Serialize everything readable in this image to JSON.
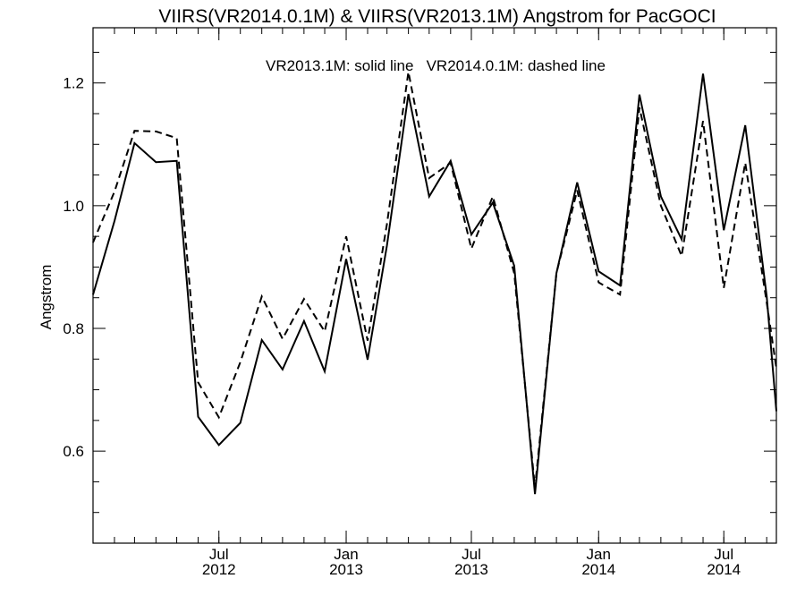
{
  "chart_data": {
    "type": "line",
    "title": "VIIRS(VR2014.0.1M) & VIIRS(VR2013.1M)  Angstrom for PacGOCI",
    "legend_text": "VR2013.1M: solid line   VR2014.0.1M: dashed line",
    "xlabel": "",
    "ylabel": "Angstrom",
    "ylim": [
      0.45,
      1.29
    ],
    "y_ticks": [
      0.6,
      0.8,
      1.0,
      1.2
    ],
    "y_tick_labels": [
      "0.6",
      "0.8",
      "1.0",
      "1.2"
    ],
    "x_range": [
      "2012-01-01",
      "2014-09-15"
    ],
    "x_ticks": [
      {
        "date": "2012-07-01",
        "month": "Jul",
        "year": "2012"
      },
      {
        "date": "2013-01-01",
        "month": "Jan",
        "year": "2013"
      },
      {
        "date": "2013-07-01",
        "month": "Jul",
        "year": "2013"
      },
      {
        "date": "2014-01-01",
        "month": "Jan",
        "year": "2014"
      },
      {
        "date": "2014-07-01",
        "month": "Jul",
        "year": "2014"
      }
    ],
    "x": [
      "2012-01-01",
      "2012-02-01",
      "2012-03-01",
      "2012-04-01",
      "2012-05-01",
      "2012-06-01",
      "2012-07-01",
      "2012-08-01",
      "2012-09-01",
      "2012-10-01",
      "2012-11-01",
      "2012-12-01",
      "2013-01-01",
      "2013-02-01",
      "2013-03-01",
      "2013-04-01",
      "2013-05-01",
      "2013-06-01",
      "2013-07-01",
      "2013-08-01",
      "2013-09-01",
      "2013-10-01",
      "2013-11-01",
      "2013-12-01",
      "2014-01-01",
      "2014-02-01",
      "2014-03-01",
      "2014-04-01",
      "2014-05-01",
      "2014-06-01",
      "2014-07-01",
      "2014-08-01",
      "2014-09-01",
      "2014-09-15"
    ],
    "series": [
      {
        "name": "VR2013.1M",
        "style": "solid",
        "values": [
          0.855,
          0.975,
          1.102,
          1.071,
          1.073,
          0.656,
          0.61,
          0.646,
          0.781,
          0.733,
          0.812,
          0.73,
          0.913,
          0.749,
          0.935,
          1.182,
          1.015,
          1.073,
          0.953,
          1.005,
          0.902,
          0.53,
          0.89,
          1.038,
          0.893,
          0.87,
          1.181,
          1.015,
          0.945,
          1.215,
          0.96,
          1.131,
          0.852,
          0.665
        ]
      },
      {
        "name": "VR2014.0.1M",
        "style": "dashed",
        "values": [
          0.94,
          1.023,
          1.122,
          1.121,
          1.11,
          0.712,
          0.655,
          0.745,
          0.852,
          0.783,
          0.848,
          0.795,
          0.95,
          0.78,
          0.97,
          1.218,
          1.045,
          1.07,
          0.93,
          1.015,
          0.89,
          0.54,
          0.89,
          1.025,
          0.875,
          0.855,
          1.16,
          1.0,
          0.918,
          1.138,
          0.866,
          1.07,
          0.842,
          0.735
        ]
      }
    ]
  }
}
